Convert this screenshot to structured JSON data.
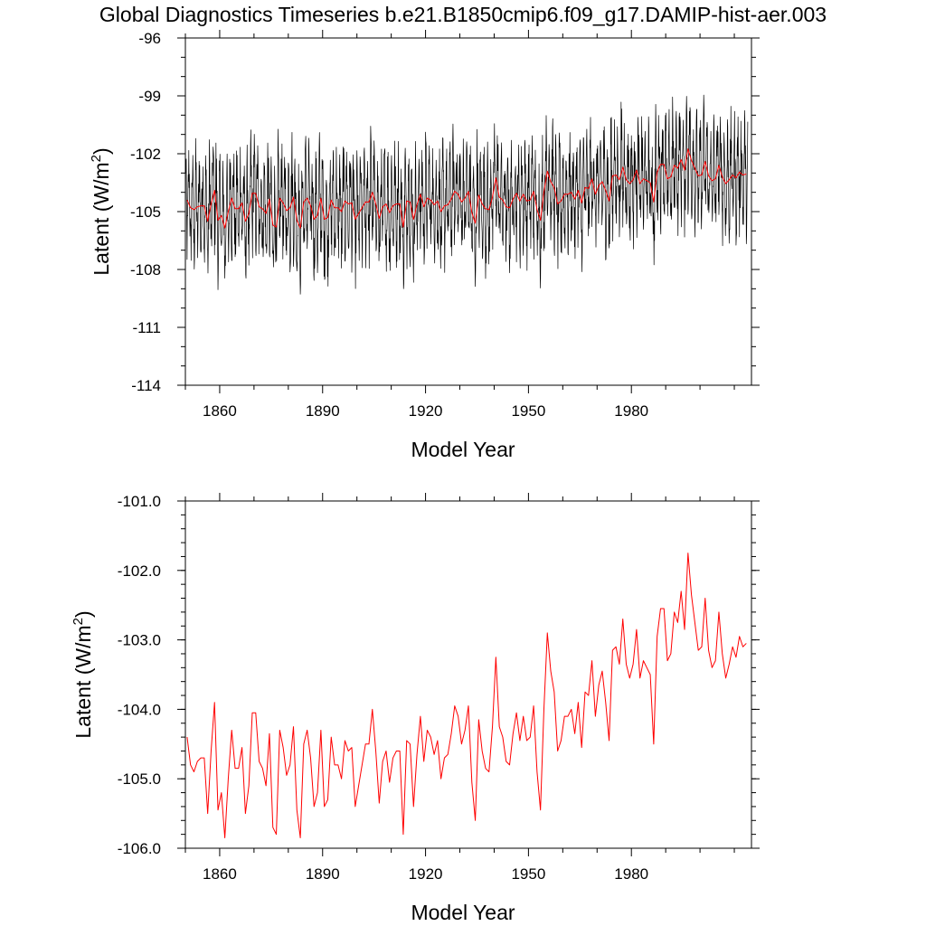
{
  "title": "Global Diagnostics Timeseries b.e21.B1850cmip6.f09_g17.DAMIP-hist-aer.003",
  "colors": {
    "monthly": "#000000",
    "annual": "#ff0000"
  },
  "chart_data": [
    {
      "type": "line",
      "xlabel": "Model Year",
      "ylabel": "Latent (W/m",
      "ylabel_sup": "2",
      "ylabel_close": ")",
      "xlim": [
        1850,
        2015
      ],
      "ylim": [
        -114,
        -96
      ],
      "xticks": [
        1860,
        1890,
        1920,
        1950,
        1980
      ],
      "xtick_labels": [
        "1860",
        "1890",
        "1920",
        "1950",
        "1980"
      ],
      "yticks": [
        -96,
        -99,
        -102,
        -105,
        -108,
        -111,
        -114
      ],
      "ytick_labels": [
        "-96",
        "-99",
        "-102",
        "-105",
        "-108",
        "-111",
        "-114"
      ],
      "grid": false,
      "series": [
        {
          "frequency": "monthly",
          "color": "#000000",
          "x_start": 1850,
          "x_step": 0.0833333,
          "seasonal_amplitude": 2.1,
          "values": []
        },
        {
          "frequency": "annual",
          "color": "#ff0000",
          "x_start": 1850,
          "values": []
        }
      ]
    },
    {
      "type": "line",
      "xlabel": "Model Year",
      "ylabel": "Latent (W/m",
      "ylabel_sup": "2",
      "ylabel_close": ")",
      "xlim": [
        1850,
        2015
      ],
      "ylim": [
        -106.0,
        -101.0
      ],
      "xticks": [
        1860,
        1890,
        1920,
        1950,
        1980
      ],
      "xtick_labels": [
        "1860",
        "1890",
        "1920",
        "1950",
        "1980"
      ],
      "yticks": [
        -101.0,
        -102.0,
        -103.0,
        -104.0,
        -105.0,
        -106.0
      ],
      "ytick_labels": [
        "-101.0",
        "-102.0",
        "-103.0",
        "-104.0",
        "-105.0",
        "-106.0"
      ],
      "grid": false,
      "series": [
        {
          "frequency": "annual",
          "color": "#ff0000",
          "x_start": 1850,
          "values": [
            -104.4,
            -104.8,
            -104.9,
            -104.75,
            -104.7,
            -104.7,
            -105.5,
            -104.6,
            -103.9,
            -105.45,
            -105.2,
            -105.85,
            -105.0,
            -104.3,
            -104.85,
            -104.85,
            -104.55,
            -105.5,
            -105.1,
            -104.05,
            -104.05,
            -104.75,
            -104.85,
            -105.1,
            -104.35,
            -105.7,
            -105.8,
            -104.3,
            -104.55,
            -104.95,
            -104.8,
            -104.25,
            -105.45,
            -105.85,
            -104.5,
            -104.3,
            -104.7,
            -105.4,
            -105.2,
            -104.3,
            -105.4,
            -105.3,
            -104.4,
            -104.8,
            -104.8,
            -105.0,
            -104.45,
            -104.6,
            -104.55,
            -105.4,
            -105.1,
            -104.8,
            -104.5,
            -104.5,
            -104.0,
            -104.6,
            -105.35,
            -104.75,
            -104.6,
            -105.05,
            -104.7,
            -104.6,
            -104.6,
            -105.8,
            -104.45,
            -104.5,
            -105.4,
            -104.65,
            -104.1,
            -104.75,
            -104.3,
            -104.4,
            -104.65,
            -104.45,
            -105.0,
            -104.7,
            -104.65,
            -104.35,
            -103.95,
            -104.1,
            -104.5,
            -104.3,
            -103.95,
            -105.05,
            -105.6,
            -104.15,
            -104.6,
            -104.85,
            -104.9,
            -104.25,
            -103.25,
            -104.25,
            -104.4,
            -104.75,
            -104.8,
            -104.35,
            -104.05,
            -104.45,
            -104.1,
            -104.45,
            -104.4,
            -103.95,
            -104.9,
            -105.45,
            -104.0,
            -102.9,
            -103.45,
            -103.75,
            -104.6,
            -104.45,
            -104.1,
            -104.1,
            -104.0,
            -104.35,
            -103.9,
            -104.55,
            -103.75,
            -103.8,
            -103.3,
            -104.1,
            -103.65,
            -103.45,
            -103.9,
            -104.45,
            -103.15,
            -103.1,
            -103.35,
            -102.7,
            -103.35,
            -103.55,
            -103.35,
            -102.85,
            -103.55,
            -103.3,
            -103.4,
            -103.5,
            -104.5,
            -102.95,
            -102.55,
            -102.55,
            -103.3,
            -103.2,
            -102.6,
            -102.75,
            -102.3,
            -102.85,
            -101.75,
            -102.35,
            -102.75,
            -103.15,
            -103.1,
            -102.4,
            -103.15,
            -103.4,
            -103.3,
            -102.6,
            -103.2,
            -103.55,
            -103.35,
            -103.1,
            -103.25,
            -102.95,
            -103.1,
            -103.05
          ]
        }
      ]
    }
  ]
}
